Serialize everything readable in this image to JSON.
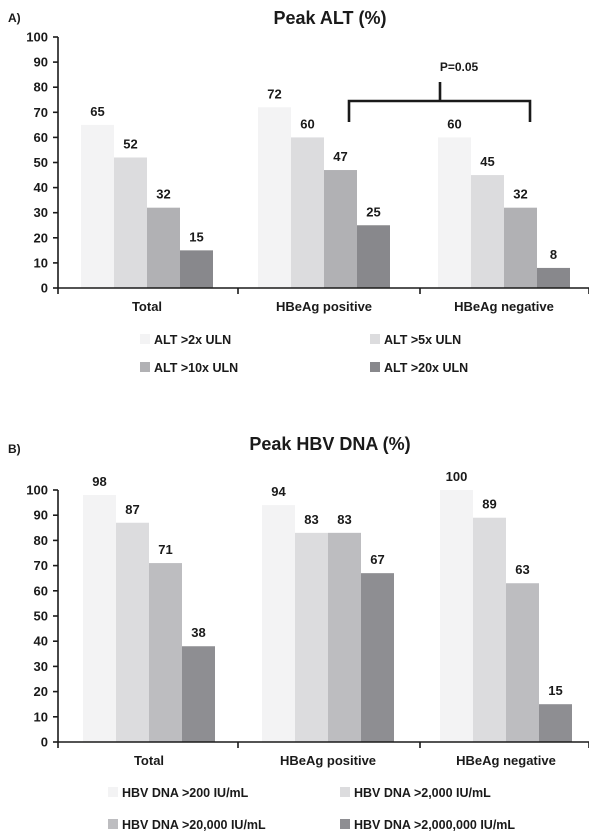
{
  "panels": [
    {
      "panel_label": "A)",
      "chart_data": {
        "type": "bar",
        "title": "Peak ALT (%)",
        "xlabel": "",
        "ylabel": "",
        "ylim": [
          0,
          100
        ],
        "yticks": [
          0,
          10,
          20,
          30,
          40,
          50,
          60,
          70,
          80,
          90,
          100
        ],
        "categories": [
          "Total",
          "HBeAg positive",
          "HBeAg negative"
        ],
        "series": [
          {
            "name": "ALT >2x ULN",
            "color": "#f3f3f4",
            "values": [
              65,
              72,
              60
            ]
          },
          {
            "name": "ALT >5x ULN",
            "color": "#dcdcde",
            "values": [
              52,
              60,
              45
            ]
          },
          {
            "name": "ALT >10x ULN",
            "color": "#b1b1b4",
            "values": [
              32,
              47,
              32
            ]
          },
          {
            "name": "ALT >20x ULN",
            "color": "#88888c",
            "values": [
              15,
              25,
              8
            ]
          }
        ],
        "legend": "bottom",
        "grid": false,
        "annotation": {
          "text": "P=0.05",
          "between": [
            "HBeAg positive",
            "HBeAg negative"
          ]
        }
      }
    },
    {
      "panel_label": "B)",
      "chart_data": {
        "type": "bar",
        "title": "Peak HBV DNA (%)",
        "xlabel": "",
        "ylabel": "",
        "ylim": [
          0,
          100
        ],
        "yticks": [
          0,
          10,
          20,
          30,
          40,
          50,
          60,
          70,
          80,
          90,
          100
        ],
        "categories": [
          "Total",
          "HBeAg positive",
          "HBeAg negative"
        ],
        "series": [
          {
            "name": "HBV DNA >200 IU/mL",
            "color": "#f3f3f4",
            "values": [
              98,
              94,
              100
            ]
          },
          {
            "name": "HBV DNA >2,000 IU/mL",
            "color": "#dcdcde",
            "values": [
              87,
              83,
              89
            ]
          },
          {
            "name": "HBV DNA >20,000 IU/mL",
            "color": "#bdbdc0",
            "values": [
              71,
              83,
              63
            ]
          },
          {
            "name": "HBV DNA >2,000,000 IU/mL",
            "color": "#8e8e92",
            "values": [
              38,
              67,
              15
            ]
          }
        ],
        "legend": "bottom",
        "grid": false
      }
    }
  ]
}
